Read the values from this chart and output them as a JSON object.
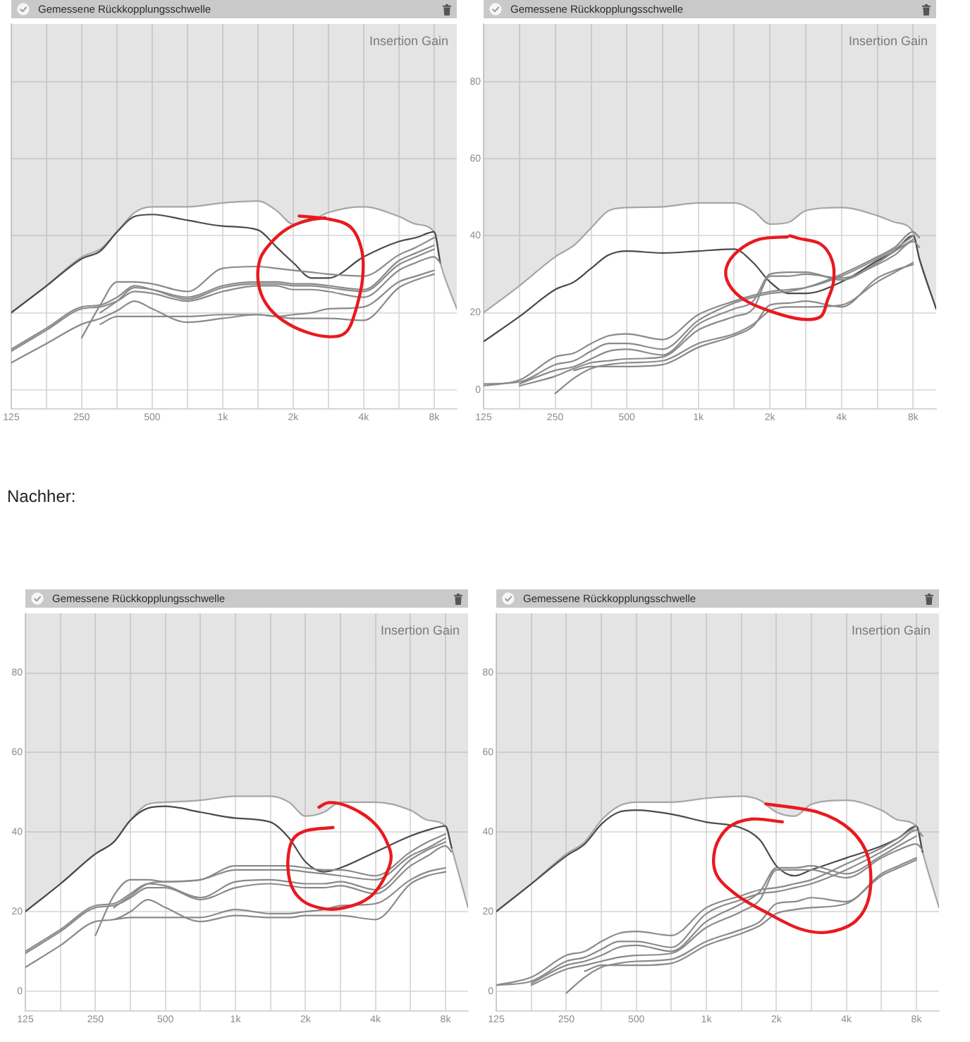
{
  "chart_data": [
    {
      "type": "line",
      "title": "Gemessene Rückkopplungsschwelle",
      "annotations": [
        "Insertion Gain"
      ],
      "log": "x",
      "grid": true,
      "tick_labels": "x",
      "marker": "none",
      "x": [
        125,
        177,
        250,
        300,
        354,
        420,
        500,
        707,
        1000,
        1414,
        1700,
        2000,
        2400,
        2828,
        4000,
        5657,
        6700,
        8000,
        8500,
        10000
      ],
      "xlim": [
        125,
        10000
      ],
      "xticks": [
        125,
        {
          "value": 177,
          "label": null
        },
        250,
        {
          "value": 354,
          "label": null
        },
        500,
        {
          "value": 707,
          "label": null
        },
        {
          "value": 1000,
          "label": "1k"
        },
        {
          "value": 1414,
          "label": null
        },
        {
          "value": 2000,
          "label": "2k"
        },
        {
          "value": 2828,
          "label": null
        },
        {
          "value": 4000,
          "label": "4k"
        },
        {
          "value": 5657,
          "label": null
        },
        {
          "value": 8000,
          "label": "8k"
        }
      ],
      "ylim": [
        -5,
        95
      ],
      "yticks": [
        0,
        20,
        40,
        60,
        80
      ],
      "series": [
        {
          "color": "#a6a6a6",
          "values": [
            20,
            27,
            34.5,
            36.5,
            41,
            46,
            47.5,
            47.5,
            48.5,
            49,
            46.5,
            43,
            44,
            46,
            47.5,
            45,
            43,
            41,
            33,
            21
          ],
          "lower": [
            20,
            27,
            34.5,
            36.5,
            41,
            46,
            47.5,
            47.5,
            48.5,
            49,
            46.5,
            43,
            44,
            46,
            47.5,
            45,
            43,
            41,
            33,
            21
          ],
          "upper": [
            95,
            95,
            95,
            95,
            95,
            95,
            95,
            95,
            95,
            95,
            95,
            95,
            95,
            95,
            95,
            95,
            95,
            95,
            95,
            95
          ]
        },
        {
          "color": "#4a4a4a",
          "values": [
            20,
            27,
            34,
            36,
            41,
            45,
            45.5,
            44,
            42.5,
            41.5,
            37,
            33,
            29,
            29,
            34.5,
            38.5,
            39.5,
            41,
            33,
            null
          ]
        },
        {
          "color": "#8a8a8a",
          "values": [
            10.5,
            16,
            21.5,
            22,
            24,
            27,
            26,
            23.5,
            26.5,
            27.5,
            27.5,
            27,
            27,
            26.5,
            25.5,
            32.5,
            34.5,
            36.5,
            null,
            null
          ]
        },
        {
          "color": "#8a8a8a",
          "values": [
            10,
            15.5,
            21,
            21.5,
            23,
            25.5,
            25,
            23,
            25.5,
            27,
            27,
            26,
            26,
            25.5,
            24,
            31,
            33,
            34.5,
            33,
            null
          ]
        },
        {
          "color": "#8a8a8a",
          "values": [
            7,
            12,
            17,
            18.5,
            20.5,
            23,
            21,
            17.5,
            18.5,
            19.5,
            19,
            18.5,
            18.5,
            18.5,
            18,
            26.5,
            28.5,
            30,
            null,
            null
          ]
        },
        {
          "color": "#8a8a8a",
          "values": [
            null,
            null,
            13.5,
            22,
            28,
            28,
            27.5,
            25.5,
            31.5,
            32,
            31.5,
            31,
            30.5,
            30,
            29.5,
            35,
            37,
            39.5,
            null,
            null
          ]
        },
        {
          "color": "#8a8a8a",
          "values": [
            null,
            null,
            null,
            17,
            19,
            19,
            19,
            19,
            19.5,
            19.5,
            19,
            19.5,
            20,
            21,
            21.5,
            28,
            29.5,
            31,
            null,
            null
          ]
        },
        {
          "color": "#8a8a8a",
          "values": [
            null,
            null,
            null,
            20,
            23,
            26.5,
            26,
            24,
            27,
            28,
            28,
            27.5,
            27.5,
            27,
            26,
            33.5,
            35.5,
            37.5,
            null,
            null
          ]
        }
      ]
    },
    {
      "type": "line",
      "title": "Gemessene Rückkopplungsschwelle",
      "annotations": [
        "Insertion Gain"
      ],
      "log": "x",
      "grid": true,
      "marker": "none",
      "x": [
        125,
        177,
        250,
        300,
        354,
        420,
        500,
        707,
        1000,
        1414,
        1700,
        2000,
        2400,
        2828,
        4000,
        5657,
        6700,
        8000,
        8500,
        10000
      ],
      "xlim": [
        125,
        10000
      ],
      "xticks": [
        125,
        {
          "value": 177,
          "label": null
        },
        250,
        {
          "value": 354,
          "label": null
        },
        500,
        {
          "value": 707,
          "label": null
        },
        {
          "value": 1000,
          "label": "1k"
        },
        {
          "value": 1414,
          "label": null
        },
        {
          "value": 2000,
          "label": "2k"
        },
        {
          "value": 2828,
          "label": null
        },
        {
          "value": 4000,
          "label": "4k"
        },
        {
          "value": 5657,
          "label": null
        },
        {
          "value": 8000,
          "label": "8k"
        }
      ],
      "ylim": [
        -5,
        95
      ],
      "yticks": [
        0,
        20,
        40,
        60,
        80
      ],
      "series": [
        {
          "color": "#a6a6a6",
          "values": [
            20,
            27,
            34.5,
            37.5,
            42,
            46.5,
            47.3,
            47.5,
            48.5,
            48.5,
            46.5,
            43,
            43.5,
            46.5,
            47.3,
            45.2,
            43.5,
            41,
            34,
            21
          ],
          "lower": [
            20,
            27,
            34.5,
            37.5,
            42,
            46.5,
            47.3,
            47.5,
            48.5,
            48.5,
            46.5,
            43,
            43.5,
            46.5,
            47.3,
            45.2,
            43.5,
            41,
            34,
            21
          ],
          "upper": [
            95,
            95,
            95,
            95,
            95,
            95,
            95,
            95,
            95,
            95,
            95,
            95,
            95,
            95,
            95,
            95,
            95,
            95,
            95,
            95
          ]
        },
        {
          "color": "#4a4a4a",
          "values": [
            12.5,
            19,
            26,
            28,
            31.5,
            35,
            36,
            35.5,
            36,
            36.5,
            33,
            28,
            25,
            25,
            28,
            33.5,
            36,
            40,
            34,
            21
          ]
        },
        {
          "color": "#8a8a8a",
          "values": [
            1,
            2.5,
            8.5,
            9.5,
            12,
            14,
            14.5,
            13,
            19.5,
            23,
            24.5,
            25.5,
            26,
            26.5,
            29.5,
            34,
            36.5,
            40,
            null,
            null
          ]
        },
        {
          "color": "#8a8a8a",
          "values": [
            1.5,
            2,
            6.5,
            7.5,
            10,
            12,
            12,
            10.5,
            18,
            22.5,
            24,
            25,
            25.5,
            26.5,
            30,
            34.5,
            37,
            41,
            39.5,
            null
          ]
        },
        {
          "color": "#8a8a8a",
          "values": [
            null,
            1.5,
            5,
            6,
            8,
            10,
            10.5,
            9,
            17,
            21,
            23,
            30,
            30.5,
            30.5,
            28.5,
            33,
            36,
            39,
            null,
            null
          ]
        },
        {
          "color": "#8a8a8a",
          "values": [
            null,
            1,
            3.5,
            5.5,
            7,
            7.5,
            8,
            8.5,
            15.5,
            19,
            21,
            29.5,
            29.5,
            30,
            29,
            32.5,
            35,
            38.5,
            37,
            null
          ]
        },
        {
          "color": "#8a8a8a",
          "values": [
            null,
            null,
            -1,
            3,
            5.5,
            6.5,
            7,
            7.5,
            12,
            14.5,
            17,
            20.5,
            21.5,
            21.5,
            22,
            28,
            30.5,
            33,
            null,
            null
          ]
        },
        {
          "color": "#8a8a8a",
          "values": [
            null,
            null,
            null,
            5,
            6,
            6,
            6,
            6.5,
            11,
            14,
            16.5,
            22,
            22.5,
            23,
            21.5,
            29,
            31,
            32.5,
            null,
            null
          ]
        }
      ]
    },
    {
      "type": "line",
      "subtitle": "Nachher:",
      "title": "Gemessene Rückkopplungsschwelle",
      "annotations": [
        "Insertion Gain"
      ],
      "log": "x",
      "grid": true,
      "marker": "none",
      "x": [
        125,
        177,
        250,
        300,
        354,
        420,
        500,
        707,
        1000,
        1414,
        1700,
        2000,
        2400,
        2828,
        4000,
        5657,
        6700,
        8000,
        8500,
        10000
      ],
      "xlim": [
        125,
        10000
      ],
      "xticks": [
        125,
        {
          "value": 177,
          "label": null
        },
        250,
        {
          "value": 354,
          "label": null
        },
        500,
        {
          "value": 707,
          "label": null
        },
        {
          "value": 1000,
          "label": "1k"
        },
        {
          "value": 1414,
          "label": null
        },
        {
          "value": 2000,
          "label": "2k"
        },
        {
          "value": 2828,
          "label": null
        },
        {
          "value": 4000,
          "label": "4k"
        },
        {
          "value": 5657,
          "label": null
        },
        {
          "value": 8000,
          "label": "8k"
        }
      ],
      "ylim": [
        -5,
        95
      ],
      "yticks": [
        0,
        20,
        40,
        60,
        80
      ],
      "series": [
        {
          "color": "#a6a6a6",
          "values": [
            20,
            27,
            34.5,
            37.5,
            43,
            47,
            47.5,
            48,
            49,
            49,
            47.5,
            44,
            45,
            47.5,
            47.5,
            45.5,
            43,
            41.5,
            36,
            21
          ],
          "lower": [
            20,
            27,
            34.5,
            37.5,
            43,
            47,
            47.5,
            48,
            49,
            49,
            47.5,
            44,
            45,
            47.5,
            47.5,
            45.5,
            43,
            41.5,
            36,
            21
          ],
          "upper": [
            95,
            95,
            95,
            95,
            95,
            95,
            95,
            95,
            95,
            95,
            95,
            95,
            95,
            95,
            95,
            95,
            95,
            95,
            95,
            95
          ]
        },
        {
          "color": "#4a4a4a",
          "values": [
            20,
            27,
            34.5,
            37.5,
            43,
            46,
            46.5,
            45,
            43.5,
            42.5,
            38.5,
            32.5,
            30,
            31,
            35,
            39,
            40.5,
            41.5,
            36,
            null
          ]
        },
        {
          "color": "#8a8a8a",
          "values": [
            10,
            15.5,
            21.5,
            22,
            24.5,
            27,
            26.5,
            23.5,
            27.5,
            28,
            27.5,
            27,
            27,
            27.5,
            25.5,
            33,
            35.5,
            37.5,
            null,
            null
          ]
        },
        {
          "color": "#8a8a8a",
          "values": [
            9.5,
            15,
            21,
            21.5,
            23.5,
            26,
            26,
            23,
            26,
            27,
            26.5,
            26,
            26,
            26.5,
            24.5,
            31.5,
            34,
            36.5,
            35,
            null
          ]
        },
        {
          "color": "#8a8a8a",
          "values": [
            6,
            11.5,
            17.5,
            18,
            20,
            23,
            21,
            17.5,
            19,
            18.5,
            18.5,
            19,
            19,
            19,
            18,
            27,
            29,
            30,
            null,
            null
          ]
        },
        {
          "color": "#8a8a8a",
          "values": [
            null,
            null,
            14,
            24,
            28,
            28,
            27.5,
            28,
            31.5,
            31.5,
            31.5,
            31,
            30.5,
            30.5,
            29,
            35,
            37.5,
            39.5,
            null,
            null
          ]
        },
        {
          "color": "#8a8a8a",
          "values": [
            null,
            null,
            null,
            18,
            18.5,
            18.5,
            18.5,
            18.5,
            20.5,
            19.5,
            19.5,
            20,
            20.5,
            21.5,
            22,
            28,
            30,
            31,
            null,
            null
          ]
        },
        {
          "color": "#8a8a8a",
          "values": [
            null,
            null,
            null,
            21,
            24,
            27,
            27.5,
            28,
            30.5,
            30.5,
            30.5,
            30,
            29.5,
            29,
            28,
            34,
            36,
            38.5,
            null,
            null
          ]
        }
      ]
    },
    {
      "type": "line",
      "title": "Gemessene Rückkopplungsschwelle",
      "annotations": [
        "Insertion Gain"
      ],
      "log": "x",
      "grid": true,
      "marker": "none",
      "x": [
        125,
        177,
        250,
        300,
        354,
        420,
        500,
        707,
        1000,
        1414,
        1700,
        2000,
        2400,
        2828,
        4000,
        5657,
        6700,
        8000,
        8500,
        10000
      ],
      "xlim": [
        125,
        10000
      ],
      "xticks": [
        125,
        {
          "value": 177,
          "label": null
        },
        250,
        {
          "value": 354,
          "label": null
        },
        500,
        {
          "value": 707,
          "label": null
        },
        {
          "value": 1000,
          "label": "1k"
        },
        {
          "value": 1414,
          "label": null
        },
        {
          "value": 2000,
          "label": "2k"
        },
        {
          "value": 2828,
          "label": null
        },
        {
          "value": 4000,
          "label": "4k"
        },
        {
          "value": 5657,
          "label": null
        },
        {
          "value": 8000,
          "label": "8k"
        }
      ],
      "ylim": [
        -5,
        95
      ],
      "yticks": [
        0,
        20,
        40,
        60,
        80
      ],
      "series": [
        {
          "color": "#a6a6a6",
          "values": [
            20,
            27,
            34.5,
            37.5,
            43,
            46.5,
            47.5,
            47.5,
            48.5,
            49,
            48,
            45,
            44,
            47,
            48,
            45.5,
            43,
            41.5,
            35,
            21
          ],
          "lower": [
            20,
            27,
            34.5,
            37.5,
            43,
            46.5,
            47.5,
            47.5,
            48.5,
            49,
            48,
            45,
            44,
            47,
            48,
            45.5,
            43,
            41.5,
            35,
            21
          ],
          "upper": [
            95,
            95,
            95,
            95,
            95,
            95,
            95,
            95,
            95,
            95,
            95,
            95,
            95,
            95,
            95,
            95,
            95,
            95,
            95,
            95
          ]
        },
        {
          "color": "#4a4a4a",
          "values": [
            20,
            27,
            34,
            37,
            42,
            45,
            45.5,
            44.5,
            42.5,
            41,
            38,
            31.5,
            29,
            30.5,
            33.5,
            36.5,
            38.5,
            41.5,
            35,
            null
          ]
        },
        {
          "color": "#8a8a8a",
          "values": [
            1.5,
            3.5,
            9,
            10,
            12.5,
            14.5,
            15,
            14,
            21,
            24,
            25.5,
            26,
            27,
            28,
            32,
            36,
            38.5,
            41.5,
            null,
            null
          ]
        },
        {
          "color": "#8a8a8a",
          "values": [
            1.5,
            2.5,
            7.5,
            8.5,
            10.5,
            12.5,
            12.5,
            11,
            19.5,
            23,
            24.5,
            25,
            26,
            27,
            30.5,
            35,
            37.5,
            40.5,
            39,
            null
          ]
        },
        {
          "color": "#8a8a8a",
          "values": [
            null,
            2,
            6.5,
            7.5,
            9,
            11,
            11.5,
            10,
            17.5,
            22,
            25,
            31,
            31,
            31.5,
            29.5,
            34,
            36.5,
            39,
            null,
            null
          ]
        },
        {
          "color": "#8a8a8a",
          "values": [
            null,
            1.5,
            5.5,
            6.5,
            7.5,
            8.5,
            9,
            9.5,
            16,
            20,
            23,
            30.5,
            30.5,
            30.5,
            28.5,
            33.5,
            35.5,
            37,
            35.5,
            null
          ]
        },
        {
          "color": "#8a8a8a",
          "values": [
            null,
            null,
            -0.5,
            3.5,
            6,
            7,
            7.5,
            8,
            12.5,
            15.5,
            17.5,
            22,
            22.5,
            23.5,
            22.5,
            29.5,
            31.5,
            33.5,
            null,
            null
          ]
        },
        {
          "color": "#8a8a8a",
          "values": [
            null,
            null,
            null,
            5,
            6.5,
            6.5,
            6.5,
            7,
            11.5,
            14.5,
            16.5,
            19.5,
            20.5,
            21,
            22,
            29,
            31,
            33,
            null,
            null
          ]
        }
      ]
    }
  ]
}
